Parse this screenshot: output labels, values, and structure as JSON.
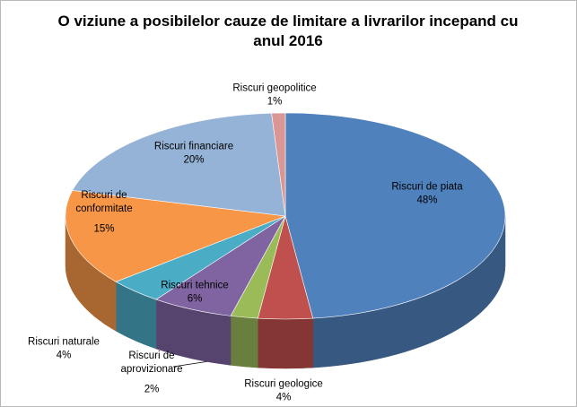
{
  "chart_data": {
    "type": "pie3d",
    "title": "O viziune a posibilelor cauze de limitare a livrarilor incepand cu anul 2016",
    "categories": [
      "Riscuri de piata",
      "Riscuri geologice",
      "Riscuri de aprovizionare",
      "Riscuri tehnice",
      "Riscuri naturale",
      "Riscuri de conformitate",
      "Riscuri financiare",
      "Riscuri geopolitice"
    ],
    "values": [
      48,
      4,
      2,
      6,
      4,
      15,
      20,
      1
    ],
    "value_labels": [
      "48%",
      "4%",
      "2%",
      "6%",
      "4%",
      "15%",
      "20%",
      "1%"
    ],
    "colors": [
      "#4f81bd",
      "#c0504d",
      "#9bbb59",
      "#8064a2",
      "#4bacc6",
      "#f79646",
      "#95b3d7",
      "#d99694"
    ]
  }
}
